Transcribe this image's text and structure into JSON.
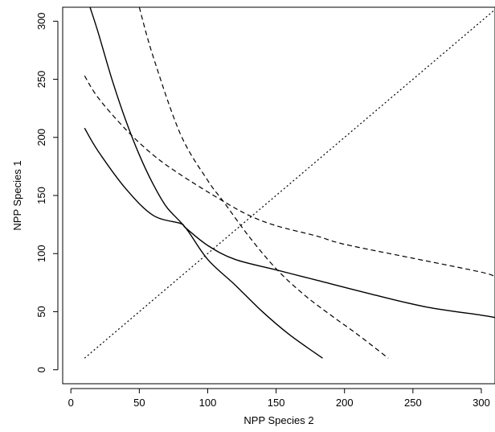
{
  "chart_data": {
    "type": "line",
    "title": "",
    "xlabel": "NPP Species 2",
    "ylabel": "NPP Species 1",
    "xlim": [
      -6,
      310
    ],
    "ylim": [
      -12,
      312
    ],
    "xticks": [
      0,
      50,
      100,
      150,
      200,
      250,
      300
    ],
    "yticks": [
      0,
      50,
      100,
      150,
      200,
      250,
      300
    ],
    "xtick_labels": [
      "0",
      "50",
      "100",
      "150",
      "200",
      "250",
      "300"
    ],
    "ytick_labels": [
      "0",
      "50",
      "100",
      "150",
      "200",
      "250",
      "300"
    ],
    "grid": false,
    "legend": "none",
    "series": [
      {
        "style": "solid",
        "x": [
          10,
          20,
          40,
          60,
          80,
          84,
          100,
          120,
          150,
          180,
          220,
          260,
          300,
          310
        ],
        "y": [
          208,
          188,
          156,
          133,
          126,
          122,
          107,
          95,
          86,
          77,
          65,
          54,
          47,
          45
        ]
      },
      {
        "style": "solid",
        "x": [
          14,
          20,
          30,
          40,
          50,
          60,
          70,
          84,
          100,
          120,
          140,
          160,
          184
        ],
        "y": [
          312,
          290,
          250,
          215,
          185,
          160,
          140,
          122,
          95,
          73,
          50,
          30,
          10
        ]
      },
      {
        "style": "dashed",
        "x": [
          10,
          20,
          40,
          60,
          80,
          110,
          130,
          150,
          180,
          200,
          250,
          300,
          310
        ],
        "y": [
          253,
          234,
          207,
          185,
          168,
          146,
          133,
          124,
          115,
          108,
          96,
          84,
          80
        ]
      },
      {
        "style": "dashed",
        "x": [
          50,
          60,
          80,
          100,
          112,
          130,
          150,
          170,
          190,
          210,
          232
        ],
        "y": [
          312,
          270,
          203,
          163,
          144,
          115,
          87,
          65,
          47,
          30,
          10
        ]
      },
      {
        "style": "dotted",
        "x": [
          10,
          310
        ],
        "y": [
          10,
          310
        ]
      }
    ]
  }
}
